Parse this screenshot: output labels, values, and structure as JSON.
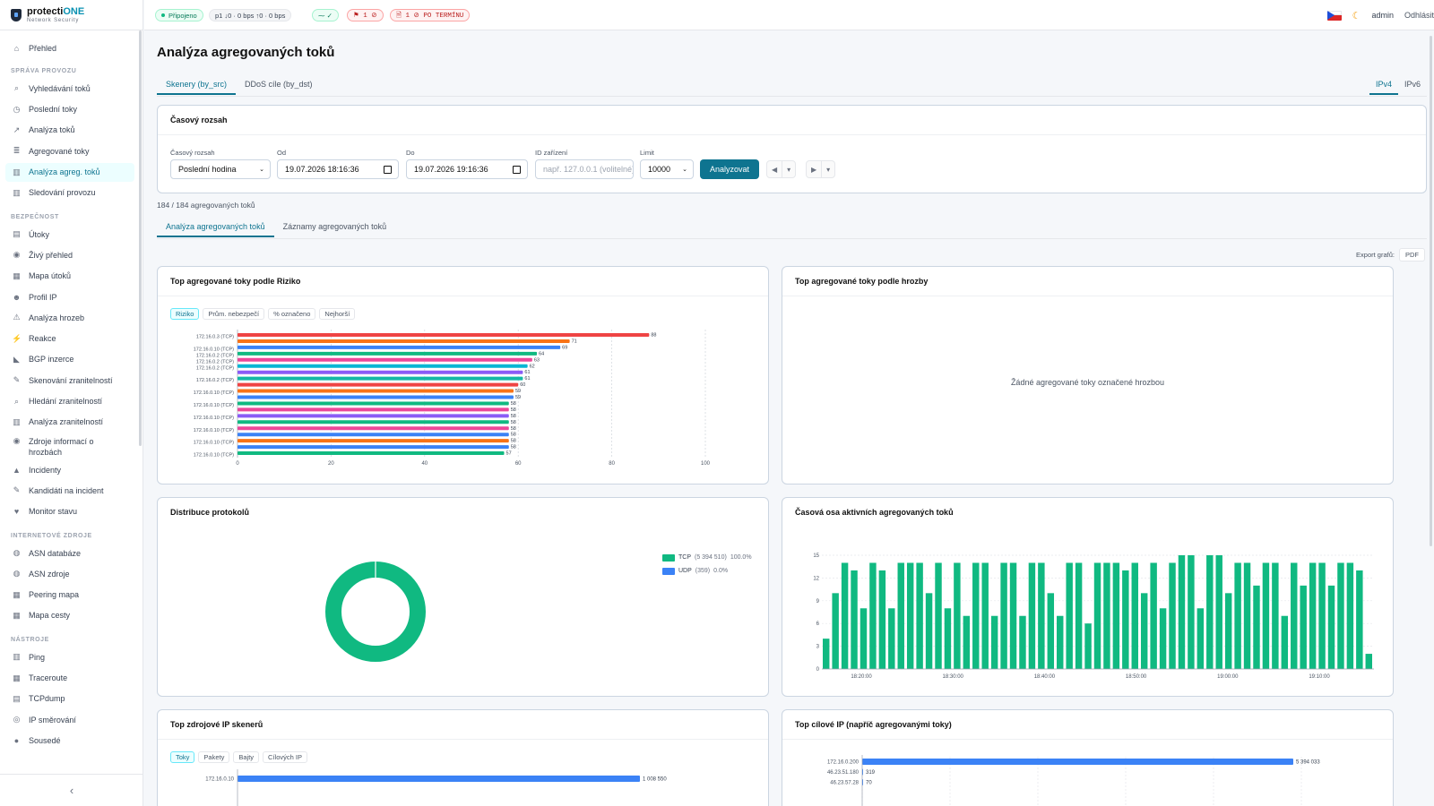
{
  "app": {
    "name_main": "protecti",
    "name_accent": "ONE",
    "subtitle": "Network Security"
  },
  "topbar": {
    "status": "Připojeno",
    "traffic": "p1 ↓0 · 0 bps ↑0 · 0 bps",
    "health": "⁓ ✓",
    "flags": "⚑ 1 ⊘",
    "overdue": "🗎 1 ⊘ PO TERMÍNU",
    "user": "admin",
    "logout": "Odhlásit"
  },
  "sidebar": {
    "collapse_icon": "‹",
    "overview": "Přehled",
    "sections": [
      {
        "title": "SPRÁVA PROVOZU",
        "items": [
          "Vyhledávání toků",
          "Poslední toky",
          "Analýza toků",
          "Agregované toky",
          "Analýza agreg. toků",
          "Sledování provozu"
        ]
      },
      {
        "title": "BEZPEČNOST",
        "items": [
          "Útoky",
          "Živý přehled",
          "Mapa útoků",
          "Profil IP",
          "Analýza hrozeb",
          "Reakce",
          "BGP inzerce",
          "Skenování zranitelností",
          "Hledání zranitelností",
          "Analýza zranitelností",
          "Zdroje informací o hrozbách",
          "Incidenty",
          "Kandidáti na incident",
          "Monitor stavu"
        ]
      },
      {
        "title": "INTERNETOVÉ ZDROJE",
        "items": [
          "ASN databáze",
          "ASN zdroje",
          "Peering mapa",
          "Mapa cesty"
        ]
      },
      {
        "title": "NÁSTROJE",
        "items": [
          "Ping",
          "Traceroute",
          "TCPdump",
          "IP směrování",
          "Sousedé"
        ]
      }
    ]
  },
  "page": {
    "title": "Analýza agregovaných toků",
    "tabs": [
      "Skenery (by_src)",
      "DDoS cíle (by_dst)"
    ],
    "ip_tabs": [
      "IPv4",
      "IPv6"
    ],
    "time_card": {
      "title": "Časový rozsah",
      "range_label": "Časový rozsah",
      "range_value": "Poslední hodina",
      "from_label": "Od",
      "from_value": "19.07.2026 18:16:36",
      "to_label": "Do",
      "to_value": "19.07.2026 19:16:36",
      "device_label": "ID zařízení",
      "device_placeholder": "např. 127.0.0.1 (volitelné)",
      "limit_label": "Limit",
      "limit_value": "10000",
      "analyze": "Analyzovat",
      "prev": "◀",
      "next": "▶",
      "drop": "▾"
    },
    "count": "184 / 184 agregovaných toků",
    "subtabs": [
      "Analýza agregovaných toků",
      "Záznamy agregovaných toků"
    ],
    "export_label": "Export grafů:",
    "export_pdf": "PDF"
  },
  "cards": {
    "risk": {
      "title": "Top agregované toky podle Riziko",
      "filters": [
        "Riziko",
        "Prům. nebezpečí",
        "% označeno",
        "Nejhorší"
      ]
    },
    "threat": {
      "title": "Top agregované toky podle hrozby",
      "empty": "Žádné agregované toky označené hrozbou"
    },
    "proto": {
      "title": "Distribuce protokolů"
    },
    "timeline": {
      "title": "Časová osa aktivních agregovaných toků"
    },
    "src": {
      "title": "Top zdrojové IP skenerů",
      "filters": [
        "Toky",
        "Pakety",
        "Bajty",
        "Cílových IP"
      ]
    },
    "dst": {
      "title": "Top cílové IP (napříč agregovanými toky)"
    }
  },
  "chart_data": [
    {
      "type": "bar",
      "orientation": "horizontal",
      "categories": [
        "172.16.0.3 (TCP)",
        "",
        "172.16.0.10 (TCP)",
        "172.16.0.2 (TCP)",
        "172.16.0.2 (TCP)",
        "172.16.0.2 (TCP)",
        "",
        "172.16.0.2 (TCP)",
        "",
        "172.16.0.10 (TCP)",
        "",
        "172.16.0.10 (TCP)",
        "",
        "172.16.0.10 (TCP)",
        "",
        "172.16.0.10 (TCP)",
        "",
        "172.16.0.10 (TCP)",
        "",
        "172.16.0.10 (TCP)"
      ],
      "values": [
        88,
        71,
        69,
        64,
        63,
        62,
        61,
        61,
        60,
        59,
        59,
        58,
        58,
        58,
        58,
        58,
        58,
        58,
        58,
        57
      ],
      "colors": [
        "#ef4444",
        "#f97316",
        "#3b82f6",
        "#10b981",
        "#ec4899",
        "#06b6d4",
        "#8b5cf6",
        "#14b8a6",
        "#ef4444",
        "#f97316",
        "#3b82f6",
        "#10b981",
        "#ec4899",
        "#8b5cf6",
        "#10b981",
        "#ec4899",
        "#3b82f6",
        "#f97316",
        "#3b82f6",
        "#10b981"
      ],
      "xlim": [
        0,
        100
      ],
      "xticks": [
        0,
        20,
        40,
        60,
        80,
        100
      ]
    },
    {
      "type": "pie",
      "series": [
        {
          "name": "TCP",
          "label": "(5 394 510)",
          "pct": "100.0%",
          "value": 5394510,
          "color": "#10b981"
        },
        {
          "name": "UDP",
          "label": "(359)",
          "pct": "0.0%",
          "value": 359,
          "color": "#3b82f6"
        }
      ]
    },
    {
      "type": "bar",
      "x_ticks": [
        "18:20:00",
        "18:30:00",
        "18:40:00",
        "18:50:00",
        "19:00:00",
        "19:10:00"
      ],
      "ylim": [
        0,
        15
      ],
      "yticks": [
        0,
        3,
        6,
        9,
        12,
        15
      ],
      "values": [
        4,
        10,
        14,
        13,
        8,
        14,
        13,
        8,
        14,
        14,
        14,
        10,
        14,
        8,
        14,
        7,
        14,
        14,
        7,
        14,
        14,
        7,
        14,
        14,
        10,
        7,
        14,
        14,
        6,
        14,
        14,
        14,
        13,
        14,
        10,
        14,
        8,
        14,
        15,
        15,
        8,
        15,
        15,
        10,
        14,
        14,
        11,
        14,
        14,
        7,
        14,
        11,
        14,
        14,
        11,
        14,
        14,
        13,
        2
      ],
      "color": "#10b981"
    },
    {
      "type": "bar",
      "orientation": "horizontal",
      "categories": [
        "172.16.0.10"
      ],
      "values": [
        1008550
      ],
      "value_labels": [
        "1 008 550"
      ],
      "color": "#3b82f6"
    },
    {
      "type": "bar",
      "orientation": "horizontal",
      "categories": [
        "172.16.0.200",
        "46.23.51.180",
        "46.23.57.28"
      ],
      "values": [
        5394033,
        319,
        70
      ],
      "value_labels": [
        "5 394 033",
        "319",
        "70"
      ],
      "color": "#3b82f6"
    }
  ]
}
